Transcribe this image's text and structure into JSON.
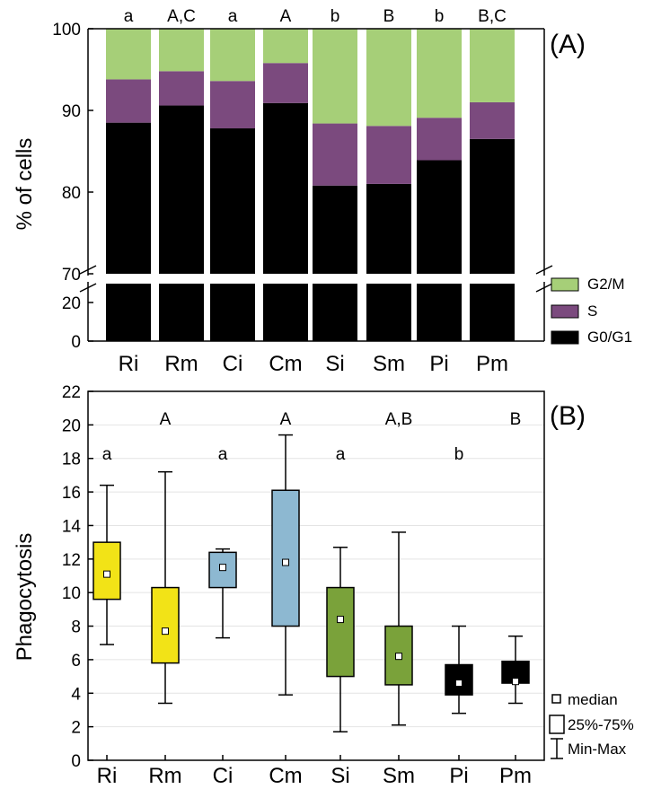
{
  "chart_data": [
    {
      "type": "bar",
      "stacked": true,
      "panel_label": "(A)",
      "ylabel": "% of cells",
      "axis_break": true,
      "y_lower_ticks": [
        "0",
        "20"
      ],
      "y_upper_ticks": [
        "70",
        "80",
        "90",
        "100"
      ],
      "ylim_upper": [
        70,
        100
      ],
      "categories": [
        "Ri",
        "Rm",
        "Ci",
        "Cm",
        "Si",
        "Sm",
        "Pi",
        "Pm"
      ],
      "group_letters": [
        "a",
        "A,C",
        "a",
        "A",
        "b",
        "B",
        "b",
        "B,C"
      ],
      "series": [
        {
          "name": "G0/G1",
          "color": "#000000",
          "values": [
            88.5,
            90.6,
            87.8,
            90.9,
            80.8,
            81.0,
            83.9,
            86.5
          ]
        },
        {
          "name": "S",
          "color": "#7b4a7e",
          "values": [
            5.3,
            4.2,
            5.8,
            4.9,
            7.6,
            7.1,
            5.2,
            4.5
          ]
        },
        {
          "name": "G2/M",
          "color": "#a6cf78",
          "values": [
            6.2,
            5.2,
            6.4,
            4.2,
            11.6,
            11.9,
            10.9,
            9.0
          ]
        }
      ]
    },
    {
      "type": "boxplot",
      "panel_label": "(B)",
      "ylabel": "Phagocytosis",
      "ylim": [
        0,
        22
      ],
      "yticks": [
        "0",
        "2",
        "4",
        "6",
        "8",
        "10",
        "12",
        "14",
        "16",
        "18",
        "20",
        "22"
      ],
      "grid": true,
      "categories": [
        "Ri",
        "Rm",
        "Ci",
        "Cm",
        "Si",
        "Sm",
        "Pi",
        "Pm"
      ],
      "letters_lower": [
        "a",
        "",
        "a",
        "",
        "a",
        "",
        "b",
        ""
      ],
      "letters_upper": [
        "",
        "A",
        "",
        "A",
        "",
        "A,B",
        "",
        "B"
      ],
      "boxes": [
        {
          "min": 6.9,
          "q1": 9.6,
          "median": 11.1,
          "q3": 13.0,
          "max": 16.4,
          "color": "#f2e317"
        },
        {
          "min": 3.4,
          "q1": 5.8,
          "median": 7.7,
          "q3": 10.3,
          "max": 17.2,
          "color": "#f2e317"
        },
        {
          "min": 7.3,
          "q1": 10.3,
          "median": 11.5,
          "q3": 12.4,
          "max": 12.6,
          "color": "#8db8d1"
        },
        {
          "min": 3.9,
          "q1": 8.0,
          "median": 11.8,
          "q3": 16.1,
          "max": 19.4,
          "color": "#8db8d1"
        },
        {
          "min": 1.7,
          "q1": 5.0,
          "median": 8.4,
          "q3": 10.3,
          "max": 12.7,
          "color": "#7aa23a"
        },
        {
          "min": 2.1,
          "q1": 4.5,
          "median": 6.2,
          "q3": 8.0,
          "max": 13.6,
          "color": "#7aa23a"
        },
        {
          "min": 2.8,
          "q1": 3.9,
          "median": 4.6,
          "q3": 5.7,
          "max": 8.0,
          "color": "#000000"
        },
        {
          "min": 3.4,
          "q1": 4.6,
          "median": 4.7,
          "q3": 5.9,
          "max": 7.4,
          "color": "#000000"
        }
      ],
      "legend": [
        "median",
        "25%-75%",
        "Min-Max"
      ]
    }
  ]
}
